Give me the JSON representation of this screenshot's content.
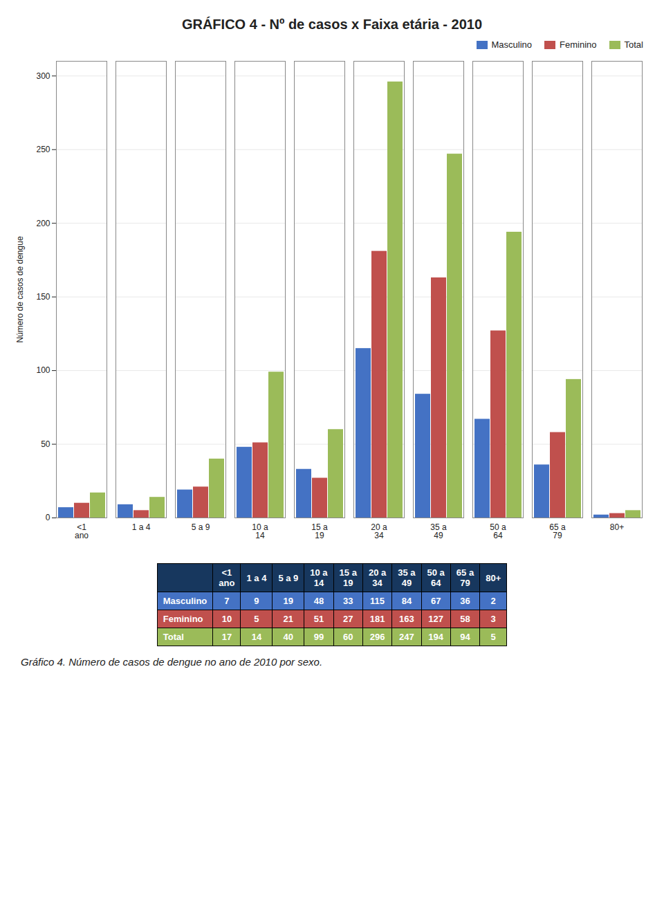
{
  "chart_data": {
    "type": "bar",
    "title": "GRÁFICO 4 - Nº de casos x Faixa etária - 2010",
    "ylabel": "Número de casos de dengue",
    "caption": "Gráfico 4. Número de casos de dengue no ano de 2010 por sexo.",
    "categories": [
      "<1\nano",
      "1 a 4",
      "5 a 9",
      "10 a\n14",
      "15 a\n19",
      "20 a\n34",
      "35 a\n49",
      "50 a\n64",
      "65 a\n79",
      "80+"
    ],
    "series": [
      {
        "name": "Masculino",
        "color": "#4472C4",
        "values": [
          7,
          9,
          19,
          48,
          33,
          115,
          84,
          67,
          36,
          2
        ]
      },
      {
        "name": "Feminino",
        "color": "#C0504D",
        "values": [
          10,
          5,
          21,
          51,
          27,
          181,
          163,
          127,
          58,
          3
        ]
      },
      {
        "name": "Total",
        "color": "#9BBB59",
        "values": [
          17,
          14,
          40,
          99,
          60,
          296,
          247,
          194,
          94,
          5
        ]
      }
    ],
    "ylim": [
      0,
      310
    ],
    "yticks": [
      0,
      50,
      100,
      150,
      200,
      250,
      300
    ],
    "grid": true,
    "legend": "upper right"
  }
}
